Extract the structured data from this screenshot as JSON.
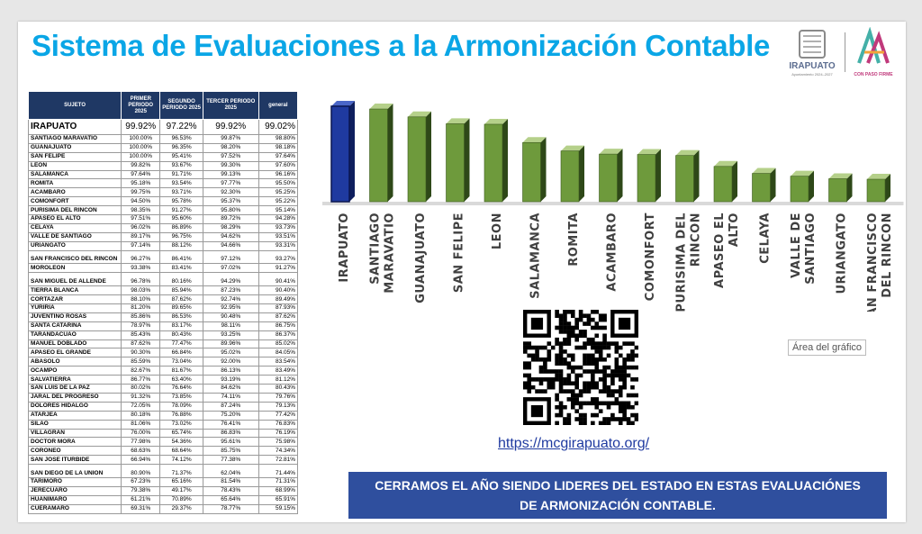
{
  "title": "Sistema de Evaluaciones a la Armonización Contable",
  "logos": {
    "left_caption": "IRAPUATO",
    "left_subcaption": "Ayuntamiento 2024–2027",
    "right_caption": "CON PASO FIRME"
  },
  "table": {
    "headers": [
      "SUJETO",
      "PRIMER PERIODO 2025",
      "SEGUNDO PERIODO 2025",
      "TERCER PERIODO 2025",
      "general"
    ],
    "highlight": {
      "name": "IRAPUATO",
      "p1": "99.92%",
      "p2": "97.22%",
      "p3": "99.92%",
      "general": "99.02%"
    },
    "rows": [
      {
        "name": "SANTIAGO MARAVATIO",
        "p1": "100.00%",
        "p2": "96.53%",
        "p3": "99.87%",
        "general": "98.80%"
      },
      {
        "name": "GUANAJUATO",
        "p1": "100.00%",
        "p2": "96.35%",
        "p3": "98.20%",
        "general": "98.18%"
      },
      {
        "name": "SAN FELIPE",
        "p1": "100.00%",
        "p2": "95.41%",
        "p3": "97.52%",
        "general": "97.64%"
      },
      {
        "name": "LEON",
        "p1": "99.82%",
        "p2": "93.67%",
        "p3": "99.30%",
        "general": "97.60%"
      },
      {
        "name": "SALAMANCA",
        "p1": "97.64%",
        "p2": "91.71%",
        "p3": "99.13%",
        "general": "96.16%"
      },
      {
        "name": "ROMITA",
        "p1": "95.18%",
        "p2": "93.54%",
        "p3": "97.77%",
        "general": "95.50%"
      },
      {
        "name": "ACAMBARO",
        "p1": "99.75%",
        "p2": "93.71%",
        "p3": "92.30%",
        "general": "95.25%"
      },
      {
        "name": "COMONFORT",
        "p1": "94.50%",
        "p2": "95.78%",
        "p3": "95.37%",
        "general": "95.22%"
      },
      {
        "name": "PURISIMA DEL RINCON",
        "p1": "98.35%",
        "p2": "91.27%",
        "p3": "95.80%",
        "general": "95.14%"
      },
      {
        "name": "APASEO EL ALTO",
        "p1": "97.51%",
        "p2": "95.60%",
        "p3": "89.72%",
        "general": "94.28%"
      },
      {
        "name": "CELAYA",
        "p1": "96.02%",
        "p2": "86.89%",
        "p3": "98.29%",
        "general": "93.73%"
      },
      {
        "name": "VALLE DE SANTIAGO",
        "p1": "89.17%",
        "p2": "96.75%",
        "p3": "94.62%",
        "general": "93.51%"
      },
      {
        "name": "URIANGATO",
        "p1": "97.14%",
        "p2": "88.12%",
        "p3": "94.66%",
        "general": "93.31%"
      },
      {
        "name": "SAN FRANCISCO DEL RINCON",
        "p1": "96.27%",
        "p2": "86.41%",
        "p3": "97.12%",
        "general": "93.27%",
        "gap": true
      },
      {
        "name": "MOROLEON",
        "p1": "93.38%",
        "p2": "83.41%",
        "p3": "97.02%",
        "general": "91.27%"
      },
      {
        "name": "SAN MIGUEL DE ALLENDE",
        "p1": "96.78%",
        "p2": "80.16%",
        "p3": "94.29%",
        "general": "90.41%",
        "gap": true
      },
      {
        "name": "TIERRA BLANCA",
        "p1": "98.03%",
        "p2": "85.94%",
        "p3": "87.23%",
        "general": "90.40%"
      },
      {
        "name": "CORTAZAR",
        "p1": "88.10%",
        "p2": "87.62%",
        "p3": "92.74%",
        "general": "89.49%"
      },
      {
        "name": "YURIRIA",
        "p1": "81.20%",
        "p2": "89.65%",
        "p3": "92.95%",
        "general": "87.93%"
      },
      {
        "name": "JUVENTINO ROSAS",
        "p1": "85.86%",
        "p2": "86.53%",
        "p3": "90.48%",
        "general": "87.62%"
      },
      {
        "name": "SANTA CATARINA",
        "p1": "78.97%",
        "p2": "83.17%",
        "p3": "98.11%",
        "general": "86.75%"
      },
      {
        "name": "TARANDACUAO",
        "p1": "85.43%",
        "p2": "80.43%",
        "p3": "93.25%",
        "general": "86.37%"
      },
      {
        "name": "MANUEL DOBLADO",
        "p1": "87.62%",
        "p2": "77.47%",
        "p3": "89.96%",
        "general": "85.02%"
      },
      {
        "name": "APASEO EL GRANDE",
        "p1": "90.30%",
        "p2": "66.84%",
        "p3": "95.02%",
        "general": "84.05%"
      },
      {
        "name": "ABASOLO",
        "p1": "85.59%",
        "p2": "73.04%",
        "p3": "92.00%",
        "general": "83.54%"
      },
      {
        "name": "OCAMPO",
        "p1": "82.67%",
        "p2": "81.67%",
        "p3": "86.13%",
        "general": "83.49%"
      },
      {
        "name": "SALVATIERRA",
        "p1": "86.77%",
        "p2": "63.40%",
        "p3": "93.19%",
        "general": "81.12%"
      },
      {
        "name": "SAN LUIS DE LA PAZ",
        "p1": "80.02%",
        "p2": "76.64%",
        "p3": "84.62%",
        "general": "80.43%"
      },
      {
        "name": "JARAL DEL PROGRESO",
        "p1": "91.32%",
        "p2": "73.85%",
        "p3": "74.11%",
        "general": "79.76%"
      },
      {
        "name": "DOLORES HIDALGO",
        "p1": "72.05%",
        "p2": "78.09%",
        "p3": "87.24%",
        "general": "79.13%"
      },
      {
        "name": "ATARJEA",
        "p1": "80.18%",
        "p2": "76.88%",
        "p3": "75.20%",
        "general": "77.42%"
      },
      {
        "name": "SILAO",
        "p1": "81.06%",
        "p2": "73.02%",
        "p3": "76.41%",
        "general": "76.83%"
      },
      {
        "name": "VILLAGRAN",
        "p1": "76.00%",
        "p2": "65.74%",
        "p3": "86.83%",
        "general": "76.19%"
      },
      {
        "name": "DOCTOR MORA",
        "p1": "77.98%",
        "p2": "54.36%",
        "p3": "95.61%",
        "general": "75.98%"
      },
      {
        "name": "CORONEO",
        "p1": "68.63%",
        "p2": "68.64%",
        "p3": "85.75%",
        "general": "74.34%"
      },
      {
        "name": "SAN JOSE ITURBIDE",
        "p1": "66.94%",
        "p2": "74.12%",
        "p3": "77.38%",
        "general": "72.81%"
      },
      {
        "name": "SAN DIEGO DE LA UNION",
        "p1": "80.90%",
        "p2": "71.37%",
        "p3": "62.04%",
        "general": "71.44%",
        "gap": true
      },
      {
        "name": "TARIMORO",
        "p1": "67.23%",
        "p2": "65.16%",
        "p3": "81.54%",
        "general": "71.31%"
      },
      {
        "name": "JERECUARO",
        "p1": "79.38%",
        "p2": "49.17%",
        "p3": "78.43%",
        "general": "68.99%"
      },
      {
        "name": "HUANIMARO",
        "p1": "61.21%",
        "p2": "70.89%",
        "p3": "65.64%",
        "general": "65.91%"
      },
      {
        "name": "CUERAMARO",
        "p1": "69.31%",
        "p2": "29.37%",
        "p3": "78.77%",
        "general": "59.15%"
      }
    ]
  },
  "chart_data": {
    "type": "bar",
    "categories": [
      "IRAPUATO",
      "SANTIAGO MARAVATIO",
      "GUANAJUATO",
      "SAN FELIPE",
      "LEON",
      "SALAMANCA",
      "ROMITA",
      "ACAMBARO",
      "COMONFORT",
      "PURISIMA DEL RINCON",
      "APASEO EL ALTO",
      "CELAYA",
      "VALLE DE SANTIAGO",
      "URIANGATO",
      "SAN FRANCISCO DEL RINCON"
    ],
    "category_labels": [
      [
        "IRAPUATO"
      ],
      [
        "SANTIAGO",
        "MARAVATIO"
      ],
      [
        "GUANAJUATO"
      ],
      [
        "SAN FELIPE"
      ],
      [
        "LEON"
      ],
      [
        "SALAMANCA"
      ],
      [
        "ROMITA"
      ],
      [
        "ACAMBARO"
      ],
      [
        "COMONFORT"
      ],
      [
        "PURISIMA DEL",
        "RINCON"
      ],
      [
        "APASEO EL",
        "ALTO"
      ],
      [
        "CELAYA"
      ],
      [
        "VALLE DE",
        "SANTIAGO"
      ],
      [
        "URIANGATO"
      ],
      [
        "SAN FRANCISCO",
        "DEL RINCON"
      ]
    ],
    "values": [
      99.02,
      98.8,
      98.18,
      97.64,
      97.6,
      96.16,
      95.5,
      95.25,
      95.22,
      95.14,
      94.28,
      93.73,
      93.51,
      93.31,
      93.27
    ],
    "ylim": [
      91.5,
      99.3
    ],
    "title": "",
    "xlabel": "",
    "ylabel": "",
    "highlight_index": 0,
    "colors": {
      "highlight": "#1f3aa0",
      "highlight_side": "#0f1f5e",
      "bar": "#6e9a3c",
      "bar_side": "#2e4818",
      "bar_top": "#b5d08a"
    },
    "grid": false,
    "legend": false
  },
  "chart_area_tooltip": "Área del gráfico",
  "qr": {
    "url": "https://mcgirapuato.org/"
  },
  "banner": {
    "line1": "CERRAMOS EL AÑO SIENDO LIDERES DEL ESTADO EN ESTAS EVALUACIÓNES",
    "line2": "DE ARMONIZACIÓN CONTABLE."
  }
}
